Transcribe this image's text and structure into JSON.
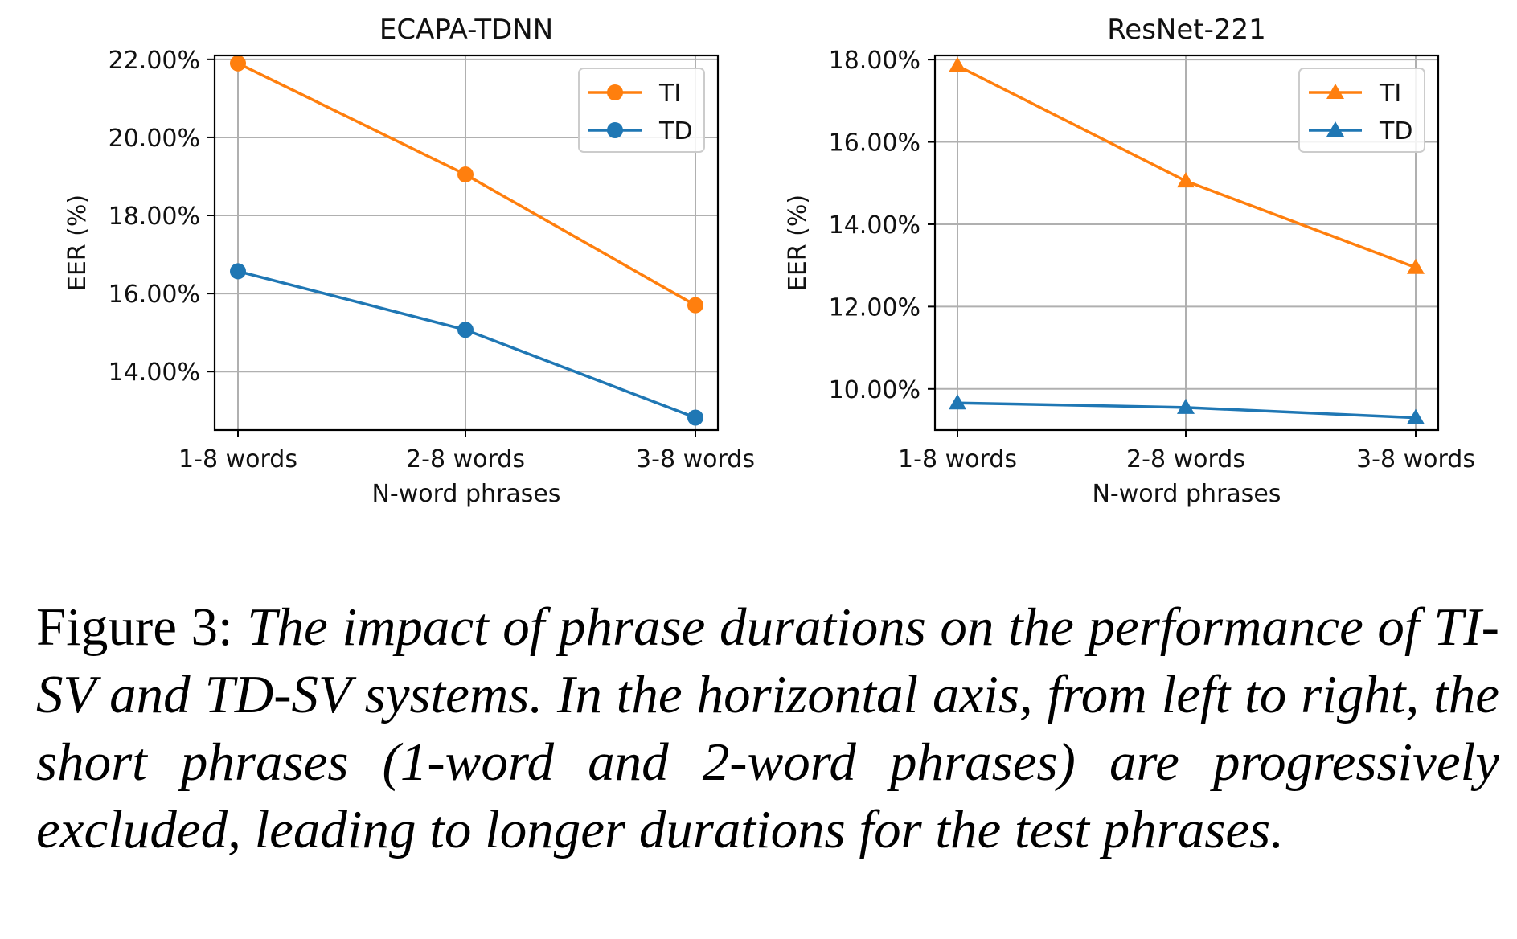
{
  "chart_data": [
    {
      "type": "line",
      "title": "ECAPA-TDNN",
      "xlabel": "N-word phrases",
      "ylabel": "EER (%)",
      "categories": [
        "1-8 words",
        "2-8 words",
        "3-8 words"
      ],
      "yticks": [
        "14.00%",
        "16.00%",
        "18.00%",
        "20.00%",
        "22.00%"
      ],
      "ytick_values": [
        14,
        16,
        18,
        20,
        22
      ],
      "ylim": [
        12.5,
        22.1
      ],
      "grid": true,
      "legend_position": "top-right",
      "marker": "circle",
      "series": [
        {
          "name": "TI",
          "color": "#ff7f0e",
          "values": [
            21.9,
            19.05,
            15.7
          ]
        },
        {
          "name": "TD",
          "color": "#1f77b4",
          "values": [
            16.57,
            15.07,
            12.82
          ]
        }
      ]
    },
    {
      "type": "line",
      "title": "ResNet-221",
      "xlabel": "N-word phrases",
      "ylabel": "EER (%)",
      "categories": [
        "1-8 words",
        "2-8 words",
        "3-8 words"
      ],
      "yticks": [
        "10.00%",
        "12.00%",
        "14.00%",
        "16.00%",
        "18.00%"
      ],
      "ytick_values": [
        10,
        12,
        14,
        16,
        18
      ],
      "ylim": [
        9.0,
        18.1
      ],
      "grid": true,
      "legend_position": "top-right",
      "marker": "triangle",
      "series": [
        {
          "name": "TI",
          "color": "#ff7f0e",
          "values": [
            17.85,
            15.05,
            12.95
          ]
        },
        {
          "name": "TD",
          "color": "#1f77b4",
          "values": [
            9.66,
            9.55,
            9.3
          ]
        }
      ]
    }
  ],
  "caption": {
    "label": "Figure 3:",
    "text": "The impact of phrase durations on the performance of TI-SV and TD-SV systems. In the horizontal axis, from left to right, the short phrases (1-word and 2-word phrases) are progressively excluded, leading to longer durations for the test phrases."
  }
}
